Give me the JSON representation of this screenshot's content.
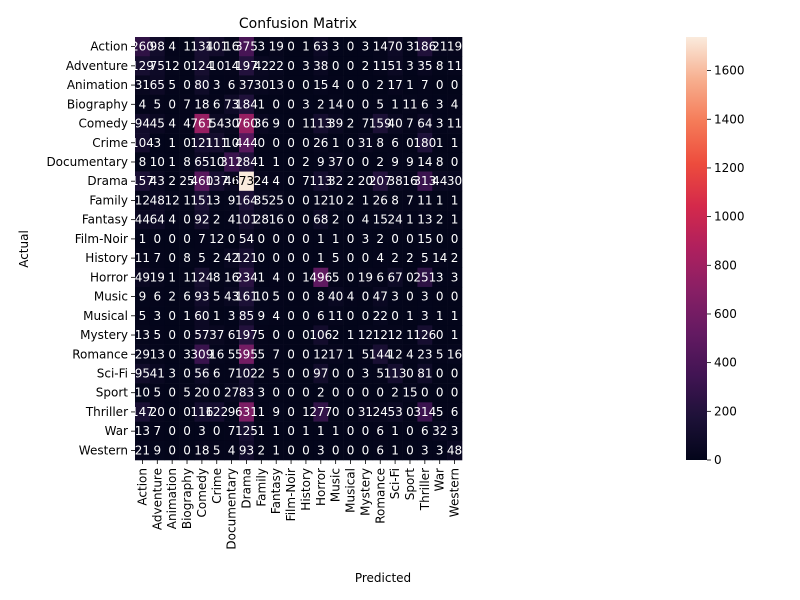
{
  "chart_data": {
    "type": "heatmap",
    "title": "Confusion Matrix",
    "xlabel": "Predicted",
    "ylabel": "Actual",
    "rows": [
      "Action",
      "Adventure",
      "Animation",
      "Biography",
      "Comedy",
      "Crime",
      "Documentary",
      "Drama",
      "Family",
      "Fantasy",
      "Film-Noir",
      "History",
      "Horror",
      "Music",
      "Musical",
      "Mystery",
      "Romance",
      "Sci-Fi",
      "Sport",
      "Thriller",
      "War",
      "Western"
    ],
    "columns": [
      "Action",
      "Adventure",
      "Animation",
      "Biography",
      "Comedy",
      "Crime",
      "Documentary",
      "Drama",
      "Family",
      "Fantasy",
      "Film-Noir",
      "History",
      "Horror",
      "Music",
      "Musical",
      "Mystery",
      "Romance",
      "Sci-Fi",
      "Sport",
      "Thriller",
      "War",
      "Western"
    ],
    "values": [
      [
        260,
        98,
        4,
        1,
        134,
        101,
        16,
        375,
        3,
        19,
        0,
        1,
        63,
        3,
        0,
        3,
        14,
        70,
        3,
        186,
        21,
        19
      ],
      [
        129,
        75,
        12,
        0,
        124,
        10,
        14,
        197,
        42,
        22,
        0,
        3,
        38,
        0,
        0,
        2,
        11,
        51,
        3,
        35,
        8,
        11
      ],
      [
        31,
        65,
        5,
        0,
        80,
        3,
        6,
        37,
        30,
        13,
        0,
        0,
        15,
        4,
        0,
        0,
        2,
        17,
        1,
        7,
        0,
        0
      ],
      [
        4,
        5,
        0,
        7,
        18,
        6,
        73,
        184,
        1,
        0,
        0,
        3,
        2,
        14,
        0,
        0,
        5,
        1,
        11,
        6,
        3,
        4
      ],
      [
        94,
        45,
        4,
        4,
        761,
        54,
        30,
        760,
        36,
        9,
        0,
        1,
        113,
        39,
        2,
        7,
        159,
        40,
        7,
        64,
        3,
        11
      ],
      [
        104,
        3,
        1,
        0,
        121,
        111,
        10,
        444,
        0,
        0,
        0,
        0,
        26,
        1,
        0,
        31,
        8,
        6,
        0,
        180,
        1,
        1
      ],
      [
        8,
        10,
        1,
        8,
        65,
        10,
        312,
        184,
        1,
        1,
        0,
        2,
        9,
        37,
        0,
        0,
        2,
        9,
        9,
        14,
        8,
        0
      ],
      [
        157,
        43,
        2,
        25,
        460,
        137,
        46,
        1738,
        24,
        4,
        0,
        7,
        113,
        32,
        2,
        20,
        207,
        38,
        16,
        313,
        44,
        30
      ],
      [
        12,
        48,
        12,
        1,
        151,
        3,
        9,
        164,
        35,
        25,
        0,
        0,
        12,
        10,
        2,
        1,
        26,
        8,
        7,
        11,
        1,
        1
      ],
      [
        44,
        64,
        4,
        0,
        92,
        2,
        4,
        101,
        28,
        16,
        0,
        0,
        68,
        2,
        0,
        4,
        15,
        24,
        1,
        13,
        2,
        1
      ],
      [
        1,
        0,
        0,
        0,
        7,
        12,
        0,
        54,
        0,
        0,
        0,
        0,
        1,
        1,
        0,
        3,
        2,
        0,
        0,
        15,
        0,
        0
      ],
      [
        11,
        7,
        0,
        8,
        5,
        2,
        42,
        121,
        0,
        0,
        0,
        0,
        1,
        5,
        0,
        0,
        4,
        2,
        2,
        5,
        14,
        2
      ],
      [
        49,
        19,
        1,
        1,
        124,
        8,
        16,
        234,
        1,
        4,
        0,
        1,
        496,
        5,
        0,
        19,
        6,
        67,
        0,
        251,
        3,
        3
      ],
      [
        9,
        6,
        2,
        6,
        93,
        5,
        43,
        161,
        10,
        5,
        0,
        0,
        8,
        40,
        4,
        0,
        47,
        3,
        0,
        3,
        0,
        0
      ],
      [
        5,
        3,
        0,
        1,
        60,
        1,
        3,
        85,
        9,
        4,
        0,
        0,
        6,
        11,
        0,
        0,
        22,
        0,
        1,
        3,
        1,
        1
      ],
      [
        13,
        5,
        0,
        0,
        57,
        37,
        6,
        197,
        5,
        0,
        0,
        0,
        106,
        2,
        1,
        12,
        12,
        12,
        1,
        126,
        0,
        1
      ],
      [
        29,
        13,
        0,
        3,
        309,
        16,
        5,
        595,
        5,
        7,
        0,
        0,
        12,
        17,
        1,
        5,
        144,
        12,
        4,
        23,
        5,
        16
      ],
      [
        95,
        41,
        3,
        0,
        56,
        6,
        7,
        102,
        2,
        5,
        0,
        0,
        97,
        0,
        0,
        3,
        5,
        113,
        0,
        81,
        0,
        0
      ],
      [
        10,
        5,
        0,
        5,
        20,
        0,
        27,
        83,
        3,
        0,
        0,
        0,
        2,
        0,
        0,
        0,
        0,
        2,
        15,
        0,
        0,
        0
      ],
      [
        147,
        20,
        0,
        0,
        116,
        122,
        9,
        631,
        1,
        9,
        0,
        1,
        277,
        0,
        0,
        31,
        24,
        53,
        0,
        314,
        5,
        6
      ],
      [
        13,
        7,
        0,
        0,
        3,
        0,
        7,
        125,
        1,
        1,
        0,
        1,
        1,
        1,
        0,
        0,
        6,
        1,
        0,
        6,
        32,
        3
      ],
      [
        21,
        9,
        0,
        0,
        18,
        5,
        4,
        93,
        2,
        1,
        0,
        0,
        3,
        0,
        0,
        0,
        6,
        1,
        0,
        3,
        3,
        48
      ]
    ],
    "colorbar": {
      "min": 0,
      "max": 1738,
      "ticks": [
        0,
        200,
        400,
        600,
        800,
        1000,
        1200,
        1400,
        1600
      ],
      "colormap": "rocket"
    },
    "annotations": "cell values"
  }
}
